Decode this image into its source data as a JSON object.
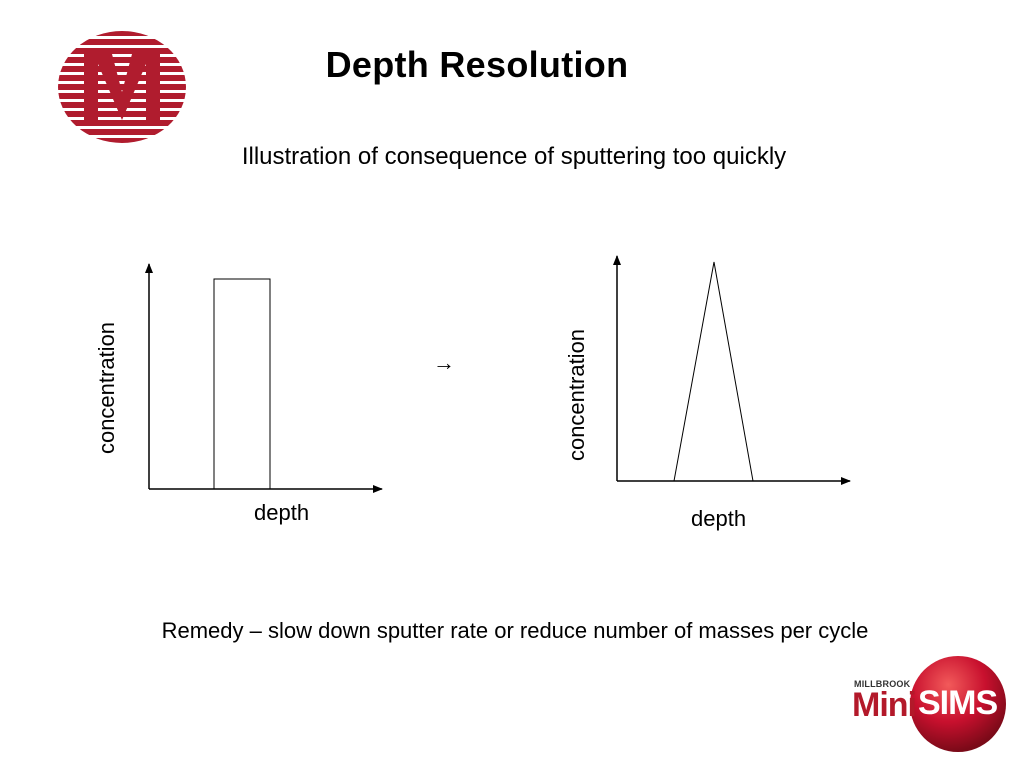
{
  "slide": {
    "title": "Depth Resolution",
    "subtitle": "Illustration of consequence of sputtering too quickly",
    "remedy": "Remedy – slow down sputter rate or reduce number of masses per cycle"
  },
  "diagram_left": {
    "ylabel": "concentration",
    "xlabel": "depth",
    "profile": "rectangle"
  },
  "diagram_right": {
    "ylabel": "concentration",
    "xlabel": "depth",
    "profile": "triangle"
  },
  "transition": {
    "glyph": "→",
    "icon": "right-arrow-icon"
  },
  "logos": {
    "left": {
      "icon": "millbrook-m-logo",
      "color": "#b01c2e"
    },
    "right": {
      "small_text": "MILLBROOK",
      "mini": "Mini",
      "sims": "SIMS",
      "color": "#b3192a"
    }
  }
}
